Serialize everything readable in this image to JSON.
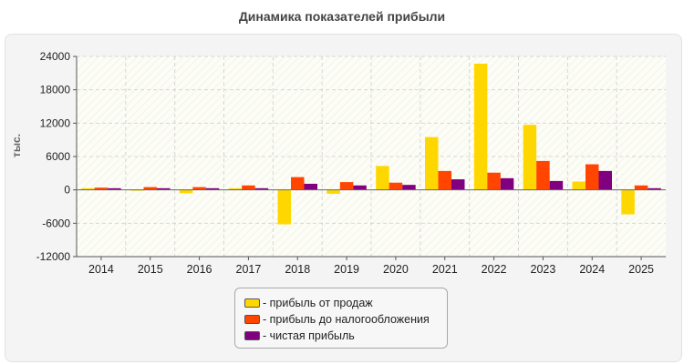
{
  "chart_data": {
    "type": "bar",
    "title": "Динамика показателей прибыли",
    "ylabel": "тыс.",
    "xlabel": "",
    "ylim": [
      -12000,
      24000
    ],
    "yticks": [
      24000,
      18000,
      12000,
      6000,
      0,
      -6000,
      -12000
    ],
    "grid": true,
    "legend_position": "bottom",
    "categories": [
      "2014",
      "2015",
      "2016",
      "2017",
      "2018",
      "2019",
      "2020",
      "2021",
      "2022",
      "2023",
      "2024",
      "2025"
    ],
    "series": [
      {
        "name": "прибыль от продаж",
        "color": "#ffd700",
        "values": [
          300,
          -150,
          -600,
          300,
          -6200,
          -700,
          4300,
          9500,
          22700,
          11700,
          1500,
          -4400
        ]
      },
      {
        "name": "прибыль до налогообложения",
        "color": "#ff4500",
        "values": [
          400,
          500,
          500,
          800,
          2300,
          1400,
          1300,
          3400,
          3100,
          5200,
          4600,
          800
        ]
      },
      {
        "name": "чистая прибыль",
        "color": "#800080",
        "values": [
          300,
          300,
          300,
          300,
          1100,
          800,
          900,
          1900,
          2100,
          1600,
          3400,
          300
        ]
      }
    ]
  }
}
